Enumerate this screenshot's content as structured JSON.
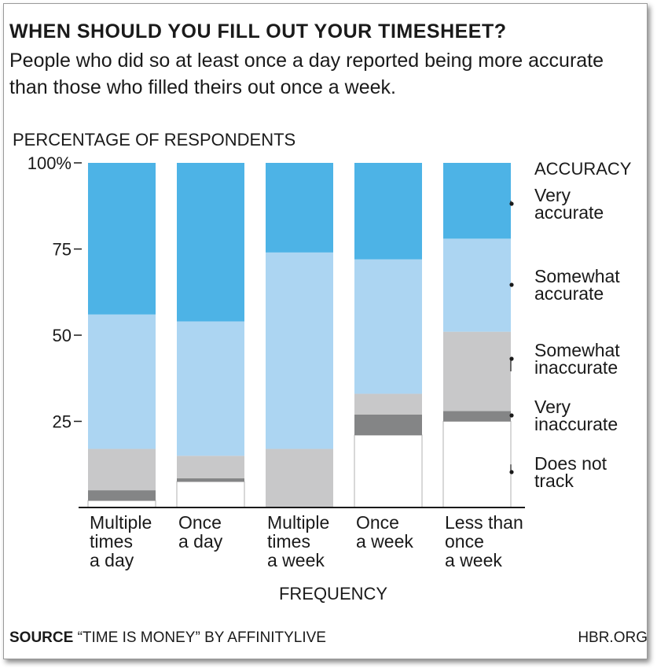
{
  "title": "WHEN SHOULD YOU FILL OUT YOUR TIMESHEET?",
  "subtitle": "People who did so at least once a day reported being more accurate than those who filled theirs out once a week.",
  "footer": {
    "source_label": "SOURCE",
    "source_text": "“TIME IS MONEY” BY AFFINITYLIVE",
    "site": "HBR.ORG"
  },
  "colors": {
    "very_accurate": "#4db3e6",
    "somewhat_accurate": "#acd5f2",
    "somewhat_inaccurate": "#c8c8c9",
    "very_inaccurate": "#848586",
    "does_not_track": "#ffffff"
  },
  "chart_data": {
    "type": "bar",
    "stacked": true,
    "ylabel": "PERCENTAGE OF RESPONDENTS",
    "xlabel": "FREQUENCY",
    "ylim": [
      0,
      100
    ],
    "yticks": [
      25,
      50,
      75,
      100
    ],
    "ytick_labels": [
      "25",
      "50",
      "75",
      "100%"
    ],
    "categories": [
      [
        "Multiple",
        "times",
        "a day"
      ],
      [
        "Once",
        "a day"
      ],
      [
        "Multiple",
        "times",
        "a week"
      ],
      [
        "Once",
        "a week"
      ],
      [
        "Less than",
        "once",
        "a week"
      ]
    ],
    "legend_title": "ACCURACY",
    "series": [
      {
        "name": "Does not track",
        "label_lines": [
          "Does not",
          "track"
        ],
        "color": "#ffffff",
        "values": [
          2,
          7.5,
          0,
          21,
          25
        ]
      },
      {
        "name": "Very inaccurate",
        "label_lines": [
          "Very",
          "inaccurate"
        ],
        "color": "#848586",
        "values": [
          3,
          1,
          0,
          6,
          3
        ]
      },
      {
        "name": "Somewhat inaccurate",
        "label_lines": [
          "Somewhat",
          "inaccurate"
        ],
        "color": "#c8c8c9",
        "values": [
          12,
          6.5,
          17,
          6,
          23
        ]
      },
      {
        "name": "Somewhat accurate",
        "label_lines": [
          "Somewhat",
          "accurate"
        ],
        "color": "#acd5f2",
        "values": [
          39,
          39,
          57,
          39,
          27
        ]
      },
      {
        "name": "Very accurate",
        "label_lines": [
          "Very",
          "accurate"
        ],
        "color": "#4db3e6",
        "values": [
          44,
          46,
          26,
          28,
          22
        ]
      }
    ]
  }
}
